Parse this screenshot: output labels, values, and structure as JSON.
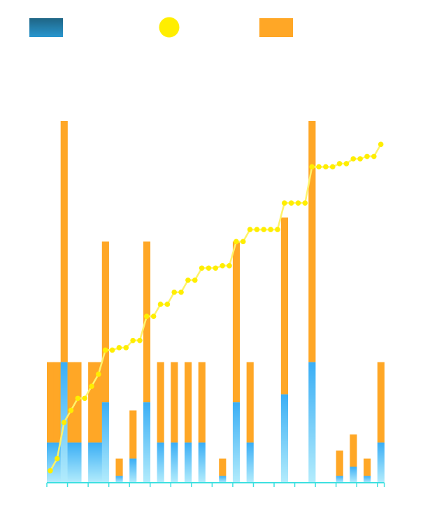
{
  "chart_data": {
    "type": "bar",
    "stacked": true,
    "title": "",
    "xlabel": "",
    "ylabel": "",
    "legend": {
      "placement": "top",
      "entries": [
        {
          "marker": "rect",
          "color": "#2483b8"
        },
        {
          "marker": "circle",
          "color": "#ffee00"
        },
        {
          "marker": "rect",
          "color": "#ffa726"
        }
      ]
    },
    "grid": false,
    "ylim": [
      0,
      9
    ],
    "y2lim": [
      0,
      90
    ],
    "x": [
      0,
      1,
      2,
      3,
      4,
      5,
      6,
      7,
      8,
      9,
      10,
      11,
      12,
      13,
      14,
      15,
      16,
      17,
      18,
      19,
      20,
      21,
      22,
      23,
      24,
      25,
      26,
      27,
      28,
      29,
      30,
      31,
      32,
      33,
      34,
      35,
      36,
      37,
      38,
      39,
      40,
      41,
      42,
      43,
      44,
      45,
      46,
      47,
      48
    ],
    "series": [
      {
        "type": "bar",
        "color": "#3ab0f5",
        "values": [
          1,
          1,
          3,
          1,
          1,
          0,
          1,
          1,
          2,
          0,
          0.17,
          0,
          0.6,
          0,
          2,
          0,
          1,
          0,
          1,
          0,
          1,
          0,
          1,
          0,
          0,
          0.17,
          0,
          2,
          0,
          1,
          0,
          0,
          0,
          0,
          2.2,
          0,
          0,
          0,
          3,
          0,
          0,
          0,
          0.17,
          0,
          0.4,
          0,
          0.17,
          0,
          1
        ]
      },
      {
        "type": "bar",
        "color": "#ffa726",
        "values": [
          2,
          2,
          6,
          2,
          2,
          0,
          2,
          2,
          4,
          0,
          0.43,
          0,
          1.2,
          0,
          4,
          0,
          2,
          0,
          2,
          0,
          2,
          0,
          2,
          0,
          0,
          0.43,
          0,
          4,
          0,
          2,
          0,
          0,
          0,
          0,
          4.4,
          0,
          0,
          0,
          6,
          0,
          0,
          0,
          0.63,
          0,
          0.8,
          0,
          0.43,
          0,
          2
        ]
      },
      {
        "type": "line",
        "axis": "right",
        "color": "#ffee00",
        "cumulative_of_bar_totals": true
      }
    ],
    "x_tick_every": 3
  }
}
